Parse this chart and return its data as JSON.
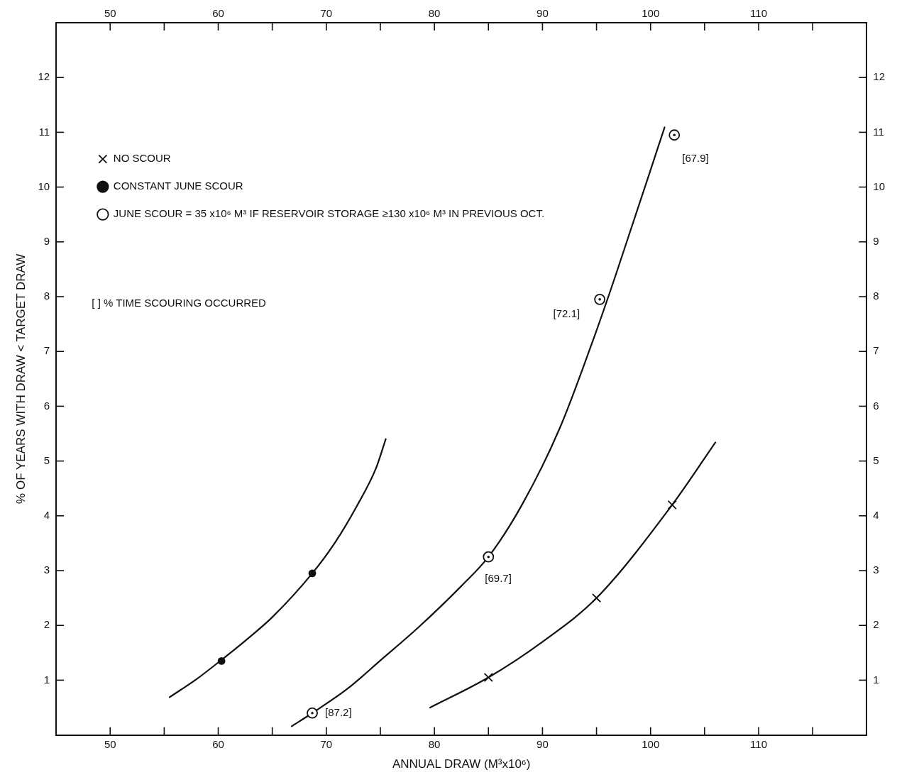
{
  "chart_data": {
    "type": "scatter",
    "xlabel": "ANNUAL DRAW (M³x10⁶)",
    "ylabel": "% OF YEARS WITH DRAW < TARGET DRAW",
    "xlim": [
      45,
      120
    ],
    "xticks": [
      50,
      {
        "value": 55,
        "label": null
      },
      60,
      {
        "value": 65,
        "label": null
      },
      70,
      {
        "value": 75,
        "label": null
      },
      80,
      {
        "value": 85,
        "label": null
      },
      90,
      {
        "value": 95,
        "label": null
      },
      100,
      {
        "value": 105,
        "label": null
      },
      110,
      {
        "value": 115,
        "label": null
      }
    ],
    "x2lim": [
      45,
      120
    ],
    "x2ticks": [
      50,
      {
        "value": 55,
        "label": null
      },
      60,
      {
        "value": 65,
        "label": null
      },
      70,
      {
        "value": 75,
        "label": null
      },
      80,
      {
        "value": 85,
        "label": null
      },
      90,
      {
        "value": 95,
        "label": null
      },
      100,
      {
        "value": 105,
        "label": null
      },
      110,
      {
        "value": 115,
        "label": null
      }
    ],
    "ylim": [
      0,
      13
    ],
    "yticks": [
      1,
      2,
      3,
      4,
      5,
      6,
      7,
      8,
      9,
      10,
      11,
      12
    ],
    "y2lim": [
      0,
      13
    ],
    "y2ticks": [
      1,
      2,
      3,
      4,
      5,
      6,
      7,
      8,
      9,
      10,
      11,
      12
    ],
    "legend": "top left",
    "series": [
      {
        "name": "NO SCOUR",
        "marker": "cross",
        "color": "#111111",
        "x": [
          85,
          95,
          102
        ],
        "values": [
          1.05,
          2.5,
          4.2
        ]
      },
      {
        "name": "CONSTANT JUNE SCOUR",
        "marker": "circle",
        "color": "#111111",
        "x": [
          60.3,
          68.7
        ],
        "values": [
          1.35,
          2.95
        ]
      },
      {
        "name": "JUNE SCOUR = 35 x10⁶ M³ IF RESERVOIR STORAGE ≥130 x10⁶ M³ IN PREVIOUS OCT.",
        "marker": "circle",
        "color": "#111111",
        "x": [
          68.7,
          85,
          95.3,
          102.2
        ],
        "values": [
          0.4,
          3.25,
          7.95,
          10.95
        ]
      },
      {
        "type": "line",
        "color": "#111111",
        "x": [
          55.5,
          58,
          60.3,
          62.5,
          65,
          68.7,
          70.7,
          72.8,
          74.6,
          75.5
        ],
        "values": [
          0.69,
          1.02,
          1.37,
          1.72,
          2.15,
          2.95,
          3.48,
          4.17,
          4.87,
          5.4
        ]
      },
      {
        "type": "line",
        "color": "#111111",
        "x": [
          66.8,
          68.7,
          72,
          75,
          78.5,
          82.5,
          85,
          88.1,
          91.6,
          94.85,
          96.7,
          101.3
        ],
        "values": [
          0.16,
          0.4,
          0.85,
          1.36,
          1.96,
          2.72,
          3.25,
          4.2,
          5.6,
          7.3,
          8.35,
          11.09
        ]
      },
      {
        "type": "line",
        "color": "#111111",
        "x": [
          79.6,
          85,
          90,
          95,
          102,
          106
        ],
        "values": [
          0.5,
          1.05,
          1.7,
          2.5,
          4.2,
          5.34
        ]
      }
    ],
    "annotations": [
      "[ ] % TIME SCOURING OCCURRED",
      {
        "text": "[87.2]",
        "x": 68.7,
        "y": 0.4
      },
      {
        "text": "[69.7]",
        "x": 85,
        "y": 3.25
      },
      {
        "text": "[72.1]",
        "x": 95.3,
        "y": 7.95
      },
      {
        "text": "[67.9]",
        "x": 102.2,
        "y": 10.95
      }
    ]
  }
}
